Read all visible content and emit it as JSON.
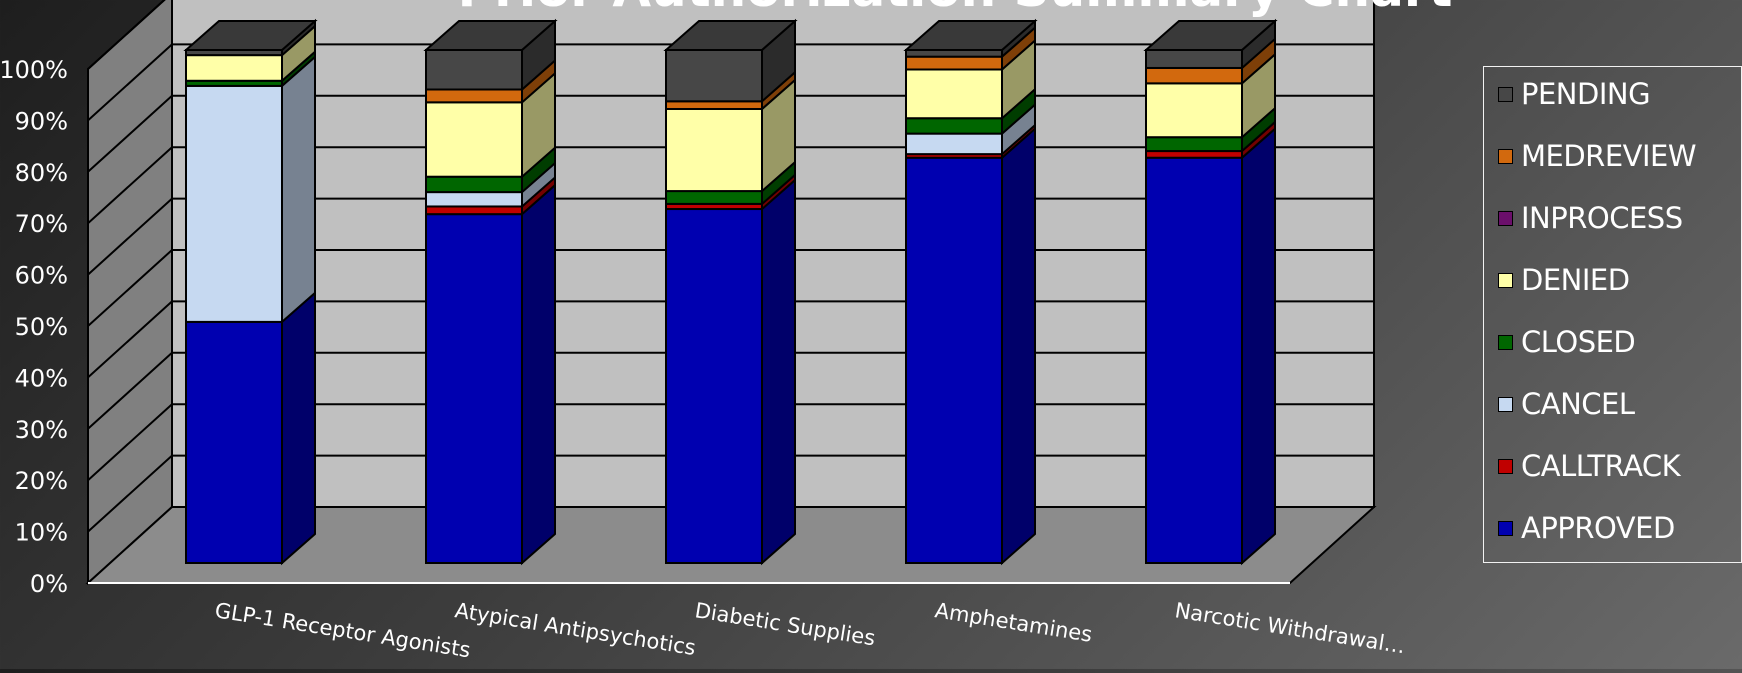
{
  "chart_data": {
    "type": "bar",
    "stacked": true,
    "percent_stacked": true,
    "three_d": true,
    "title": "Prior Authorization Summary Chart",
    "categories": [
      "GLP-1 Receptor Agonists",
      "Atypical Antipsychotics",
      "Diabetic Supplies",
      "Amphetamines",
      "Narcotic Withdrawal…"
    ],
    "ylim": [
      0,
      100
    ],
    "yticks": [
      "0%",
      "10%",
      "20%",
      "30%",
      "40%",
      "50%",
      "60%",
      "70%",
      "80%",
      "90%",
      "100%"
    ],
    "grid": true,
    "legend_position": "right",
    "series": [
      {
        "name": "APPROVED",
        "color": "#0000b0",
        "values": [
          47,
          68,
          69,
          79,
          79
        ]
      },
      {
        "name": "CALLTRACK",
        "color": "#c00000",
        "values": [
          0,
          1.5,
          1,
          0.7,
          1.3
        ]
      },
      {
        "name": "CANCEL",
        "color": "#c6d9f1",
        "values": [
          46,
          2.8,
          0,
          4,
          0
        ]
      },
      {
        "name": "CLOSED",
        "color": "#006600",
        "values": [
          1,
          3,
          2.5,
          3,
          2.7
        ]
      },
      {
        "name": "DENIED",
        "color": "#ffffa8",
        "values": [
          5,
          14.5,
          16,
          9.5,
          10.5
        ]
      },
      {
        "name": "INPROCESS",
        "color": "#6b0f6b",
        "values": [
          0,
          0,
          0,
          0,
          0
        ]
      },
      {
        "name": "MEDREVIEW",
        "color": "#d2690e",
        "values": [
          0,
          2.5,
          1.5,
          2.5,
          3
        ]
      },
      {
        "name": "PENDING",
        "color": "#474747",
        "values": [
          1,
          7.7,
          10,
          1.3,
          3.5
        ]
      }
    ]
  },
  "legend": {
    "items": [
      {
        "label": "PENDING",
        "color": "#474747"
      },
      {
        "label": "MEDREVIEW",
        "color": "#d2690e"
      },
      {
        "label": "INPROCESS",
        "color": "#6b0f6b"
      },
      {
        "label": "DENIED",
        "color": "#ffffa8"
      },
      {
        "label": "CLOSED",
        "color": "#006600"
      },
      {
        "label": "CANCEL",
        "color": "#c6d9f1"
      },
      {
        "label": "CALLTRACK",
        "color": "#c00000"
      },
      {
        "label": "APPROVED",
        "color": "#0000b0"
      }
    ]
  }
}
